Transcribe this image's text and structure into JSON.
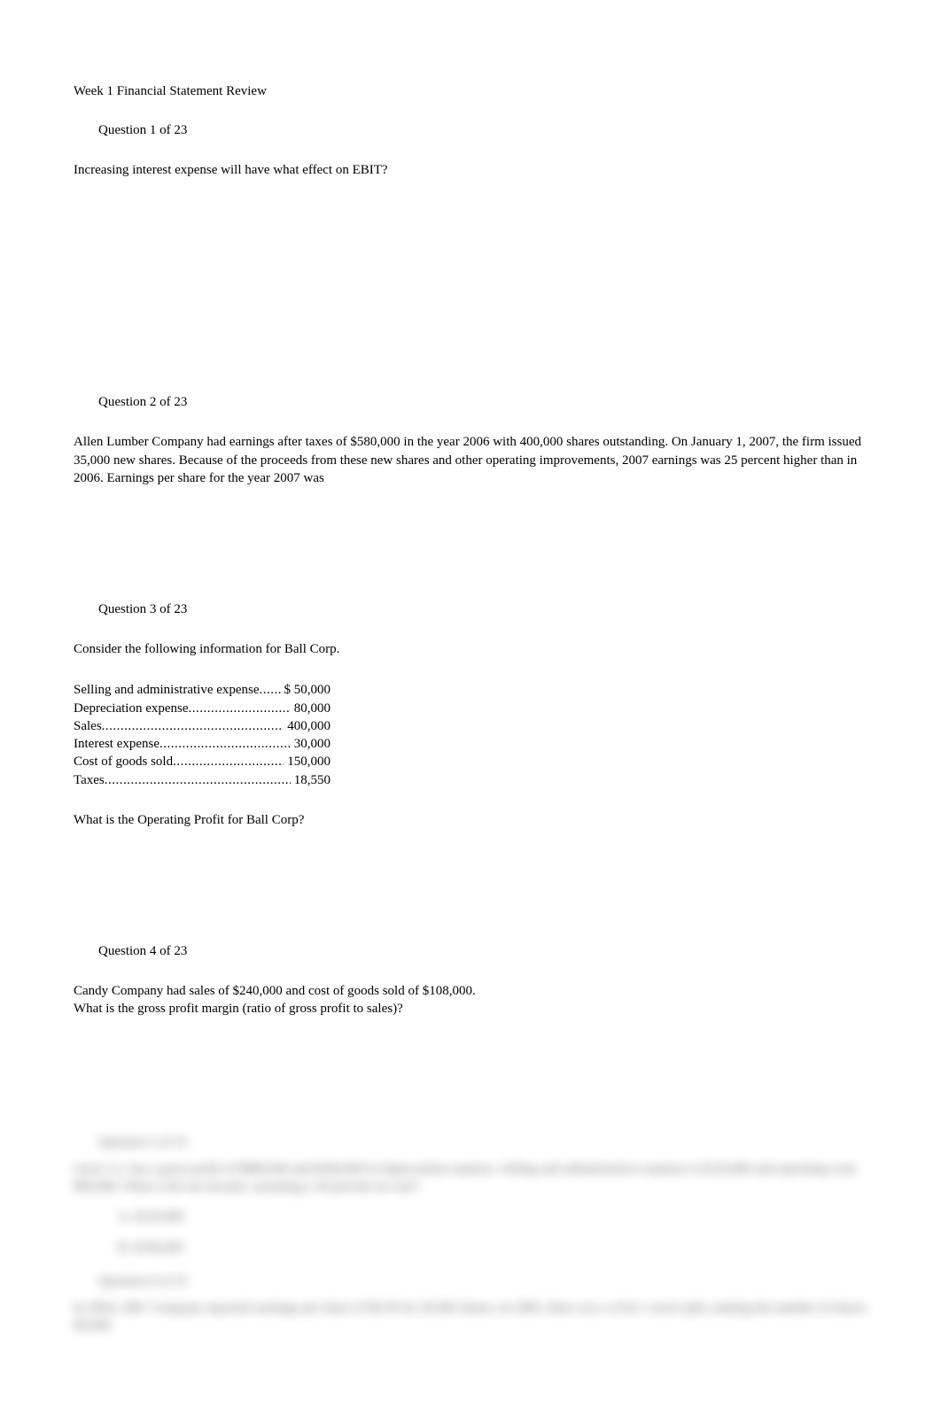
{
  "title": "Week 1 Financial Statement Review",
  "q1": {
    "header": "Question 1 of 23",
    "text": "Increasing interest expense will have what effect on EBIT?"
  },
  "q2": {
    "header": "Question 2 of 23",
    "text": "Allen Lumber Company had earnings after taxes of $580,000 in the year 2006 with 400,000 shares outstanding. On January 1, 2007, the firm issued 35,000 new shares. Because of the proceeds from these new shares and other operating improvements, 2007 earnings was 25 percent higher than in 2006. Earnings per share for the year 2007 was"
  },
  "q3": {
    "header": "Question 3 of 23",
    "intro": "Consider the following information for Ball Corp.",
    "rows": [
      {
        "label": "Selling and administrative expense",
        "value": "$ 50,000"
      },
      {
        "label": "Depreciation expense",
        "value": "80,000"
      },
      {
        "label": "Sales",
        "value": "400,000"
      },
      {
        "label": "Interest expense",
        "value": " 30,000"
      },
      {
        "label": "Cost of goods sold",
        "value": "150,000"
      },
      {
        "label": "Taxes",
        "value": "18,550"
      }
    ],
    "question": "What is the Operating Profit for Ball Corp?"
  },
  "q4": {
    "header": "Question 4 of 23",
    "line1": "Candy Company had sales of $240,000 and cost of goods sold of $108,000.",
    "line2": "What is the gross profit margin (ratio of gross profit to sales)?"
  },
  "blurred": {
    "q5header": "Question 5 of 23",
    "q5line": "Gerry Co. has a gross profit of $880,000 and $360,000 in depreciation expense. Selling and administrative expense is $120,000 and operating costs $90,000. What is the net income, assuming a 30 percent tax rate?",
    "a1": "A. $120,000",
    "a2": "B. $190,000",
    "q6header": "Question 6 of 23",
    "q6line": "In 2004, ABC Company reported earnings per share of $6.50 for 20,000 shares. In 2005, there was a 4-for-1 stock split, making the number of shares 80,000."
  },
  "colors": {
    "background": "#ffffff",
    "text": "#000000"
  }
}
